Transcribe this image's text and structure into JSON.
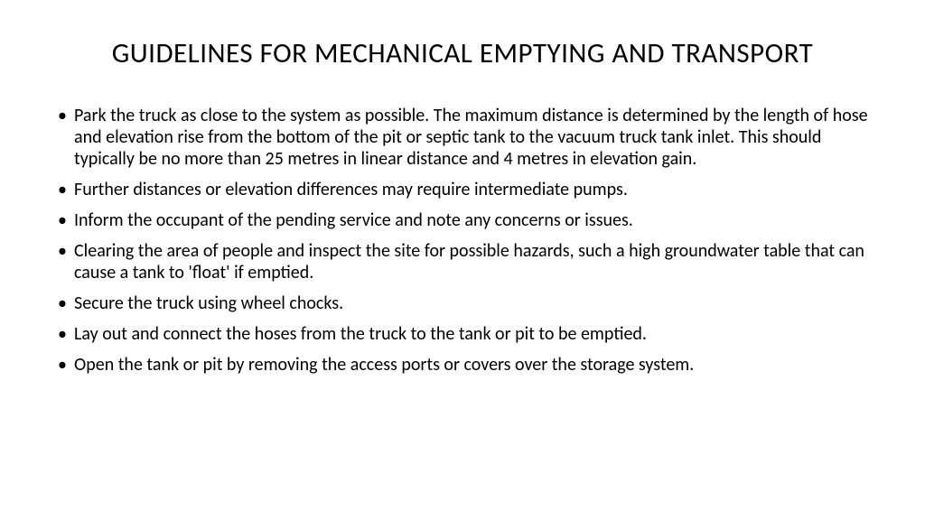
{
  "slide": {
    "title": "GUIDELINES FOR MECHANICAL EMPTYING AND TRANSPORT",
    "bullets": [
      "Park the truck as close to the system as possible. The maximum distance is determined by the length of hose and elevation rise from the bottom of the pit or septic tank to the vacuum truck tank inlet. This should typically be no more than 25 metres in linear distance and 4 metres in elevation gain.",
      "Further distances or elevation differences may require intermediate pumps.",
      "Inform the occupant of the pending service and note any concerns or issues.",
      "Clearing the area of people and inspect the site for possible hazards, such  a high groundwater table that can cause a tank to 'float' if emptied.",
      "Secure the truck using wheel chocks.",
      "Lay out and connect the hoses from the truck to the tank or pit to be emptied.",
      "Open the tank or pit by removing the access ports or covers over the storage system."
    ]
  },
  "styling": {
    "background_color": "#ffffff",
    "text_color": "#000000",
    "title_fontsize": 31,
    "body_fontsize": 20,
    "font_family": "Calibri"
  }
}
